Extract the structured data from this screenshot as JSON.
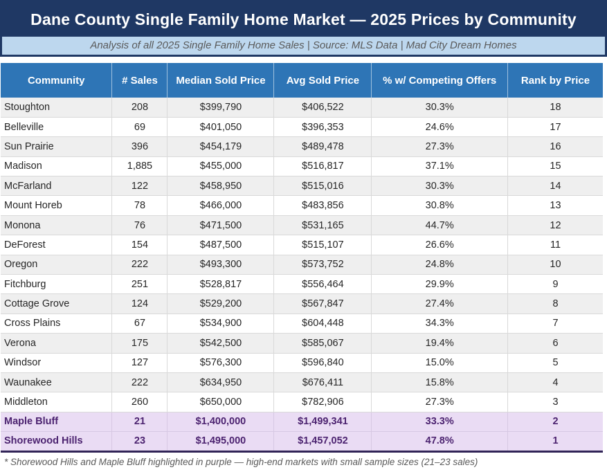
{
  "chart_data": {
    "type": "table",
    "title": "Dane County Single Family Home Market — 2025 Prices by Community",
    "subtitle": "Analysis of all 2025 Single Family Home Sales  |  Source: MLS Data  |  Mad City Dream Homes",
    "columns": [
      "Community",
      "# Sales",
      "Median Sold Price",
      "Avg Sold Price",
      "% w/ Competing Offers",
      "Rank by Price"
    ],
    "column_widths_pct": [
      18.5,
      9.2,
      17.7,
      16.2,
      22.6,
      15.8
    ],
    "rows": [
      {
        "community": "Stoughton",
        "sales": "208",
        "median": "$399,790",
        "avg": "$406,522",
        "competing": "30.3%",
        "rank": "18",
        "highlighted": false
      },
      {
        "community": "Belleville",
        "sales": "69",
        "median": "$401,050",
        "avg": "$396,353",
        "competing": "24.6%",
        "rank": "17",
        "highlighted": false
      },
      {
        "community": "Sun Prairie",
        "sales": "396",
        "median": "$454,179",
        "avg": "$489,478",
        "competing": "27.3%",
        "rank": "16",
        "highlighted": false
      },
      {
        "community": "Madison",
        "sales": "1,885",
        "median": "$455,000",
        "avg": "$516,817",
        "competing": "37.1%",
        "rank": "15",
        "highlighted": false
      },
      {
        "community": "McFarland",
        "sales": "122",
        "median": "$458,950",
        "avg": "$515,016",
        "competing": "30.3%",
        "rank": "14",
        "highlighted": false
      },
      {
        "community": "Mount Horeb",
        "sales": "78",
        "median": "$466,000",
        "avg": "$483,856",
        "competing": "30.8%",
        "rank": "13",
        "highlighted": false
      },
      {
        "community": "Monona",
        "sales": "76",
        "median": "$471,500",
        "avg": "$531,165",
        "competing": "44.7%",
        "rank": "12",
        "highlighted": false
      },
      {
        "community": "DeForest",
        "sales": "154",
        "median": "$487,500",
        "avg": "$515,107",
        "competing": "26.6%",
        "rank": "11",
        "highlighted": false
      },
      {
        "community": "Oregon",
        "sales": "222",
        "median": "$493,300",
        "avg": "$573,752",
        "competing": "24.8%",
        "rank": "10",
        "highlighted": false
      },
      {
        "community": "Fitchburg",
        "sales": "251",
        "median": "$528,817",
        "avg": "$556,464",
        "competing": "29.9%",
        "rank": "9",
        "highlighted": false
      },
      {
        "community": "Cottage Grove",
        "sales": "124",
        "median": "$529,200",
        "avg": "$567,847",
        "competing": "27.4%",
        "rank": "8",
        "highlighted": false
      },
      {
        "community": "Cross Plains",
        "sales": "67",
        "median": "$534,900",
        "avg": "$604,448",
        "competing": "34.3%",
        "rank": "7",
        "highlighted": false
      },
      {
        "community": "Verona",
        "sales": "175",
        "median": "$542,500",
        "avg": "$585,067",
        "competing": "19.4%",
        "rank": "6",
        "highlighted": false
      },
      {
        "community": "Windsor",
        "sales": "127",
        "median": "$576,300",
        "avg": "$596,840",
        "competing": "15.0%",
        "rank": "5",
        "highlighted": false
      },
      {
        "community": "Waunakee",
        "sales": "222",
        "median": "$634,950",
        "avg": "$676,411",
        "competing": "15.8%",
        "rank": "4",
        "highlighted": false
      },
      {
        "community": "Middleton",
        "sales": "260",
        "median": "$650,000",
        "avg": "$782,906",
        "competing": "27.3%",
        "rank": "3",
        "highlighted": false
      },
      {
        "community": "Maple Bluff",
        "sales": "21",
        "median": "$1,400,000",
        "avg": "$1,499,341",
        "competing": "33.3%",
        "rank": "2",
        "highlighted": true
      },
      {
        "community": "Shorewood Hills",
        "sales": "23",
        "median": "$1,495,000",
        "avg": "$1,457,052",
        "competing": "47.8%",
        "rank": "1",
        "highlighted": true
      }
    ],
    "footnote": "* Shorewood Hills and Maple Bluff highlighted in purple — high-end markets with small sample sizes (21–23 sales)",
    "legend_position": "none",
    "grid": true
  },
  "colors": {
    "title_bg": "#1F3864",
    "subtitle_bg": "#BDD7EE",
    "header_bg": "#2E75B6",
    "stripe_bg": "#EFEFEF",
    "highlight_bg": "#EADCF4",
    "highlight_text": "#4C2370",
    "muted_text": "#595959",
    "table_bottom_border": "#312457"
  }
}
